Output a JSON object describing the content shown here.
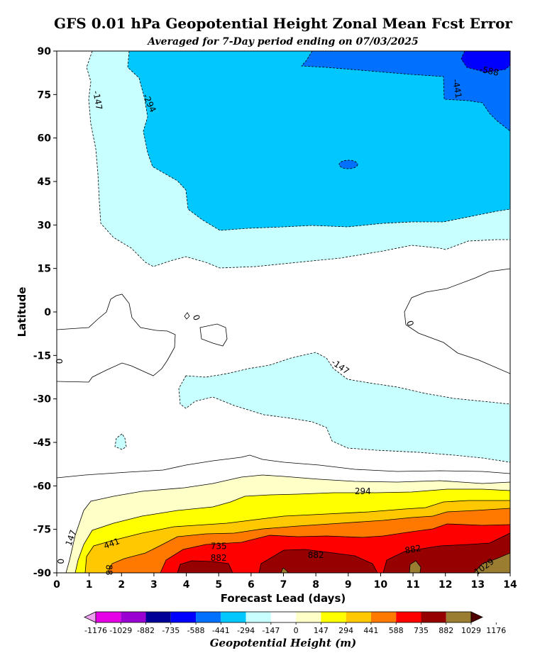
{
  "title": "GFS 0.01 hPa Geopotential Height Zonal Mean Fcst Error",
  "subtitle": "Averaged for 7-Day period ending on 07/03/2025",
  "chart_data": {
    "type": "contour",
    "xlabel": "Forecast Lead (days)",
    "ylabel": "Latitude",
    "xlim": [
      0,
      14
    ],
    "ylim": [
      -90,
      90
    ],
    "xticks": [
      "0",
      "1",
      "2",
      "3",
      "4",
      "5",
      "6",
      "7",
      "8",
      "9",
      "10",
      "11",
      "12",
      "13",
      "14"
    ],
    "yticks": [
      "90",
      "75",
      "60",
      "45",
      "30",
      "15",
      "0",
      "-15",
      "-30",
      "-45",
      "-60",
      "-75",
      "-90"
    ],
    "colorbar": {
      "label": "Geopotential Height (m)",
      "levels": [
        "-1176",
        "-1029",
        "-882",
        "-735",
        "-588",
        "-441",
        "-294",
        "-147",
        "0",
        "147",
        "294",
        "441",
        "588",
        "735",
        "882",
        "1029",
        "1176"
      ],
      "colors": [
        "#e600e6",
        "#9b00d2",
        "#000096",
        "#0000ff",
        "#0070ff",
        "#00c8ff",
        "#c8ffff",
        "#ffffff",
        "#ffffc8",
        "#ffff00",
        "#ffc800",
        "#ff7800",
        "#ff0000",
        "#960000",
        "#9b7d32"
      ],
      "under_color": "#f0a0f0",
      "over_color": "#500000"
    },
    "contour_labels": [
      "-588",
      "-441",
      "-294",
      "-147",
      "0",
      "0",
      "0",
      "-147",
      "294",
      "147",
      "441",
      "735",
      "882",
      "882",
      "882",
      "1029",
      "0",
      "88"
    ]
  }
}
